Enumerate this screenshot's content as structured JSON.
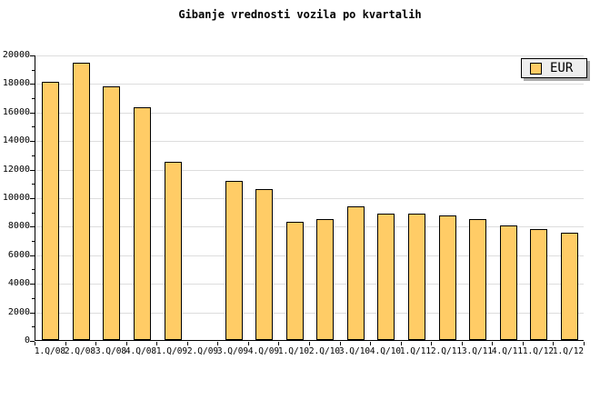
{
  "title": "Gibanje vrednosti vozila po kvartalih",
  "legend": {
    "label": "EUR",
    "position": "top-right"
  },
  "colors": {
    "bar_fill": "#FFCC66",
    "bar_border": "#000000",
    "grid": "#DDDDDD",
    "axis": "#000000",
    "legend_bg": "#EEEEEE",
    "legend_shadow": "#AAAAAA",
    "background": "#FFFFFF"
  },
  "chart_data": {
    "type": "bar",
    "title": "Gibanje vrednosti vozila po kvartalih",
    "series_name": "EUR",
    "categories": [
      "1.Q/08",
      "2.Q/08",
      "3.Q/08",
      "4.Q/08",
      "1.Q/09",
      "2.Q/09",
      "3.Q/09",
      "4.Q/09",
      "1.Q/10",
      "2.Q/10",
      "3.Q/10",
      "4.Q/10",
      "1.Q/11",
      "2.Q/11",
      "3.Q/11",
      "4.Q/11",
      "1.Q/12",
      "1.Q/12"
    ],
    "values": [
      18100,
      19450,
      17800,
      16300,
      12500,
      null,
      11150,
      10600,
      8300,
      8500,
      9350,
      8850,
      8850,
      8700,
      8450,
      8050,
      7750,
      7500
    ],
    "xlabel": "",
    "ylabel": "",
    "ylim": [
      0,
      20000
    ],
    "y_major_step": 2000,
    "y_minor_step": 1000,
    "y_tick_labels": [
      "0",
      "2000",
      "4000",
      "6000",
      "8000",
      "10000",
      "12000",
      "14000",
      "16000",
      "18000",
      "20000"
    ],
    "grid": true,
    "legend_position": "top-right",
    "note_missing_category": "2.Q/09"
  }
}
